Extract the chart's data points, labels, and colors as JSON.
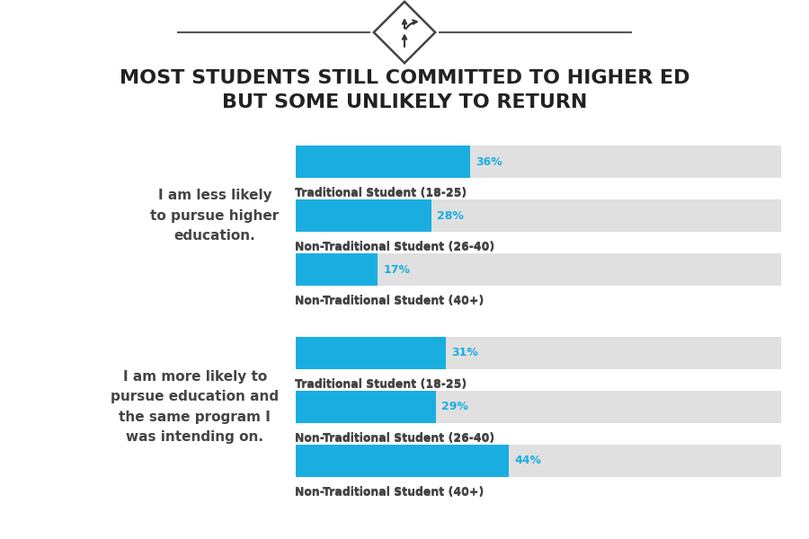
{
  "title_line1": "MOST STUDENTS STILL COMMITTED TO HIGHER ED",
  "title_line2": "BUT SOME UNLIKELY TO RETURN",
  "title_fontsize": 16,
  "title_color": "#222222",
  "background_color": "#ffffff",
  "bar_color": "#1aaee0",
  "bar_bg_color": "#e0e0e0",
  "label_color": "#444444",
  "pct_color": "#1aaee0",
  "group1_label": "I am less likely\nto pursue higher\neducation.",
  "group2_label": "I am more likely to\npursue education and\nthe same program I\nwas intending on.",
  "group1_bars": [
    36,
    28,
    17
  ],
  "group2_bars": [
    31,
    29,
    44
  ],
  "bar_labels": [
    "Traditional Student (18-25)",
    "Non-Traditional Student (26-40)",
    "Non-Traditional Student (40+)"
  ],
  "group_label_fontsize": 11,
  "bar_label_fontsize": 9,
  "pct_fontsize": 9
}
